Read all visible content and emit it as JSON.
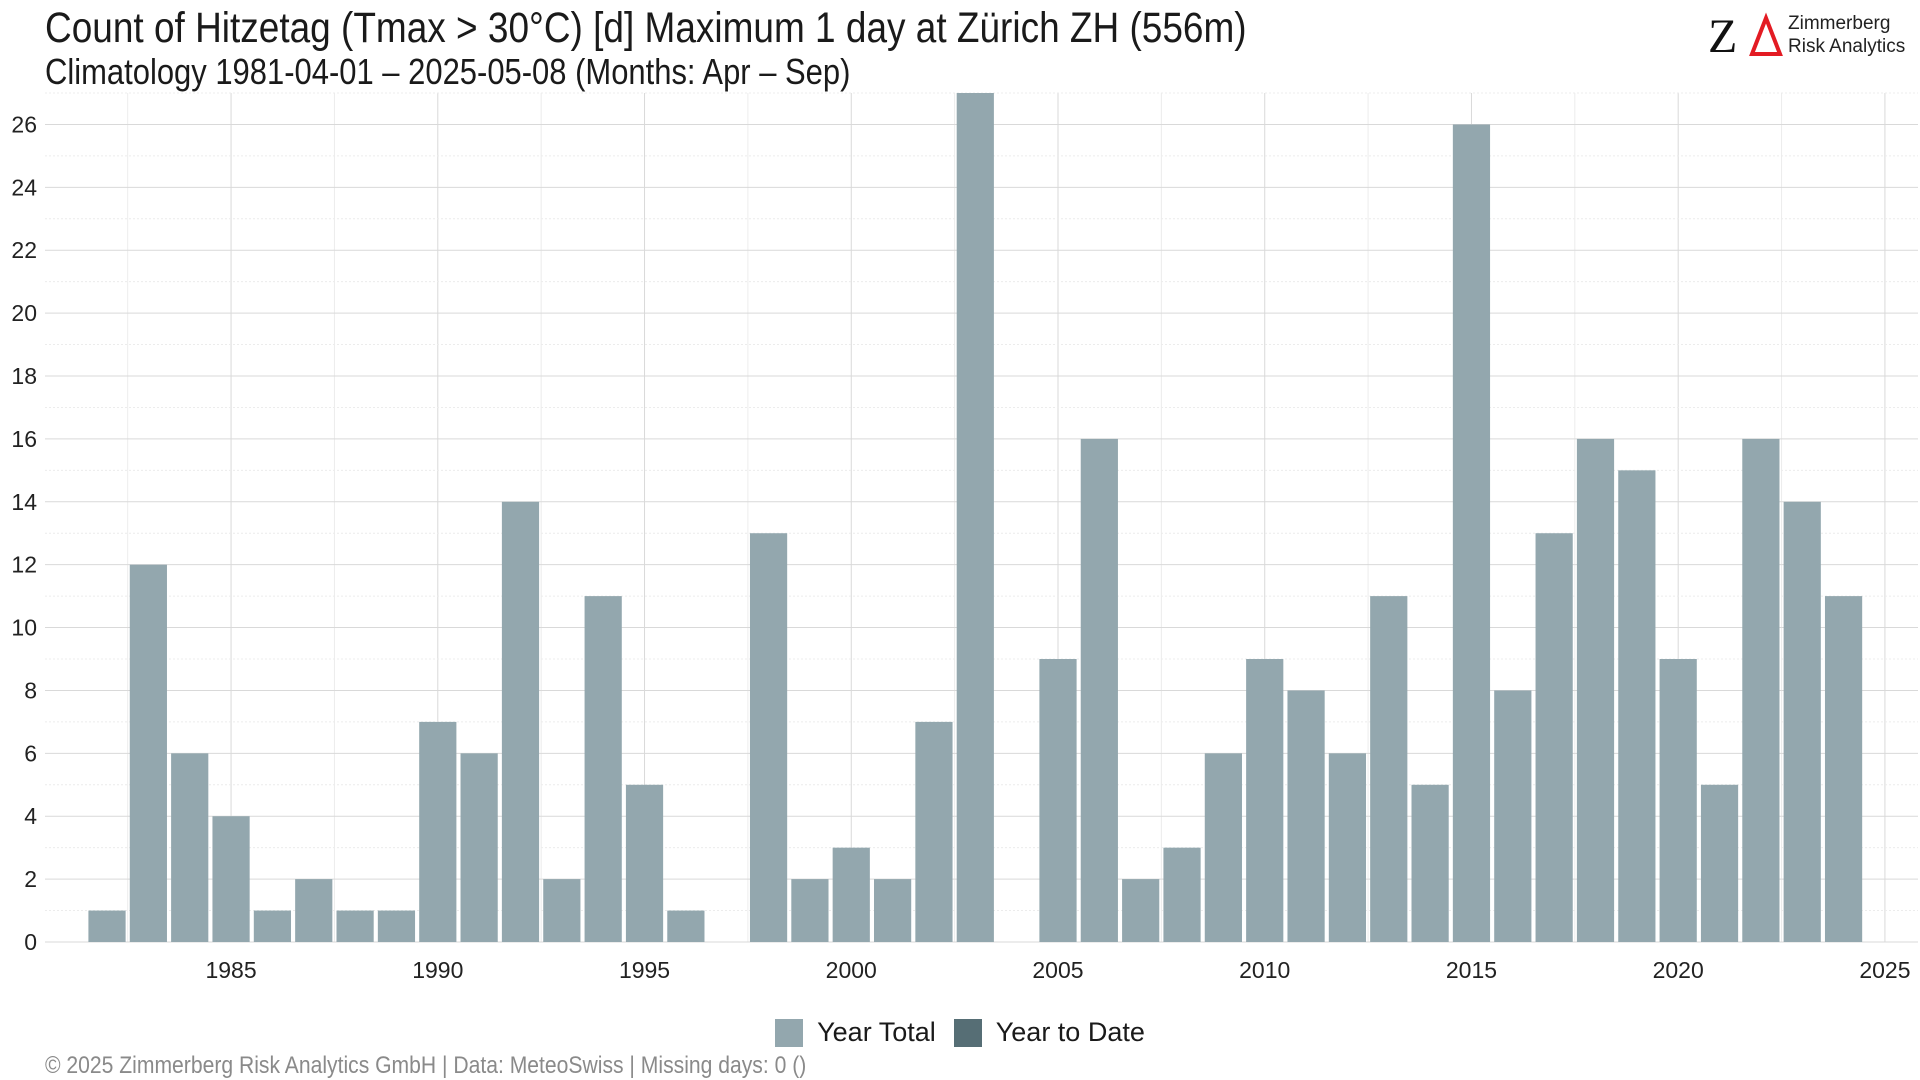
{
  "header": {
    "title": "Count of Hitzetag (Tmax > 30°C) [d] Maximum 1 day at Zürich  ZH (556m)",
    "subtitle": "Climatology 1981-04-01 – 2025-05-08 (Months: Apr – Sep)"
  },
  "logo": {
    "mark": "ZΔ",
    "line1": "Zimmerberg",
    "line2": "Risk Analytics"
  },
  "footer": {
    "text": "©  2025 Zimmerberg Risk Analytics GmbH | Data: MeteoSwiss | Missing days: 0 ()"
  },
  "legend": {
    "items": [
      {
        "label": "Year Total",
        "color": "#93a7ae"
      },
      {
        "label": "Year to Date",
        "color": "#566e75"
      }
    ]
  },
  "chart_data": {
    "type": "bar",
    "title": "Count of Hitzetag (Tmax > 30°C) [d] Maximum 1 day at Zürich  ZH (556m)",
    "subtitle": "Climatology 1981-04-01 – 2025-05-08 (Months: Apr – Sep)",
    "xlabel": "",
    "ylabel": "",
    "x_ticks": [
      1985,
      1990,
      1995,
      2000,
      2005,
      2010,
      2015,
      2020,
      2025
    ],
    "y_ticks": [
      0,
      2,
      4,
      6,
      8,
      10,
      12,
      14,
      16,
      18,
      20,
      22,
      24,
      26
    ],
    "xlim": [
      1980.5,
      2025.8
    ],
    "ylim": [
      0,
      27
    ],
    "grid": true,
    "legend_position": "bottom",
    "series": [
      {
        "name": "Year Total",
        "color": "#93a7ae",
        "x": [
          1982,
          1983,
          1984,
          1985,
          1986,
          1987,
          1988,
          1989,
          1990,
          1991,
          1992,
          1993,
          1994,
          1995,
          1996,
          1998,
          1999,
          2000,
          2001,
          2002,
          2003,
          2005,
          2006,
          2007,
          2008,
          2009,
          2010,
          2011,
          2012,
          2013,
          2014,
          2015,
          2016,
          2017,
          2018,
          2019,
          2020,
          2021,
          2022,
          2023,
          2024
        ],
        "values": [
          1,
          12,
          6,
          4,
          1,
          2,
          1,
          1,
          7,
          6,
          14,
          2,
          11,
          5,
          1,
          13,
          2,
          3,
          2,
          7,
          27,
          9,
          16,
          2,
          3,
          6,
          9,
          8,
          6,
          11,
          5,
          26,
          8,
          13,
          16,
          15,
          9,
          5,
          16,
          14,
          11
        ]
      },
      {
        "name": "Year to Date",
        "color": "#566e75",
        "x": [],
        "values": []
      }
    ]
  }
}
